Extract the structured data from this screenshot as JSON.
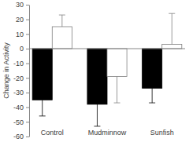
{
  "chart_data": {
    "type": "bar",
    "y_label": "Change in Activity",
    "categories": [
      "Control",
      "Mudminnow",
      "Sunfish"
    ],
    "series": [
      {
        "color": "#000000",
        "values": [
          -35,
          -38,
          -27
        ],
        "errors": [
          11,
          15,
          10
        ]
      },
      {
        "color": "#ffffff",
        "values": [
          15,
          -19,
          3
        ],
        "errors": [
          8,
          18,
          21
        ]
      }
    ],
    "ylim": [
      -60,
      30
    ],
    "yticks": [
      -60,
      -50,
      -40,
      -30,
      -20,
      -10,
      0,
      10,
      20,
      30
    ]
  }
}
